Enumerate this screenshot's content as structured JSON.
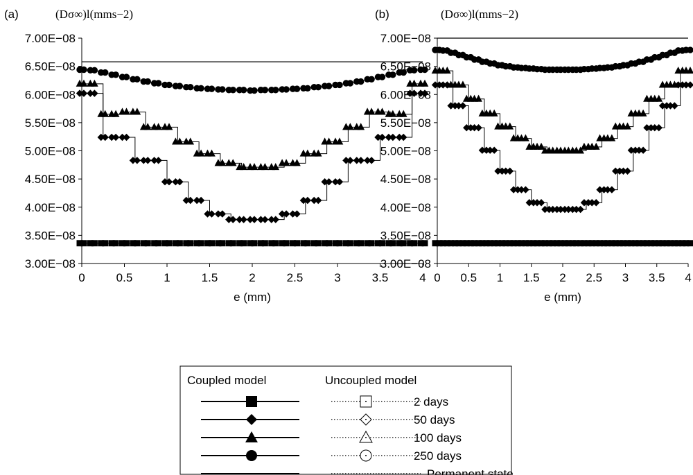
{
  "colors": {
    "ink": "#000000",
    "background": "#ffffff"
  },
  "chart_data": [
    {
      "panel_label": "(a)",
      "ylabel": "(Dσ∞)l(mms−2)",
      "xlabel": "e (mm)",
      "type": "line",
      "x": [
        0,
        0.125,
        0.25,
        0.375,
        0.5,
        0.625,
        0.75,
        0.875,
        1,
        1.125,
        1.25,
        1.375,
        1.5,
        1.625,
        1.75,
        1.875,
        2,
        2.125,
        2.25,
        2.375,
        2.5,
        2.625,
        2.75,
        2.875,
        3,
        3.125,
        3.25,
        3.375,
        3.5,
        3.625,
        3.75,
        3.875,
        4
      ],
      "xticks": [
        "0",
        "0.5",
        "1",
        "1.5",
        "2",
        "2.5",
        "3",
        "3.5",
        "4"
      ],
      "yticks": [
        "3.00E−08",
        "3.50E−08",
        "4.00E−08",
        "4.50E−08",
        "5.00E−08",
        "5.50E−08",
        "6.00E−08",
        "6.50E−08",
        "7.00E−08"
      ],
      "xlim": [
        0,
        4
      ],
      "ylim": [
        3e-08,
        7e-08
      ],
      "grid": false,
      "series": [
        {
          "name": "2 days",
          "marker": "square",
          "values": [
            3.36e-08,
            3.36e-08,
            3.36e-08,
            3.36e-08,
            3.36e-08,
            3.36e-08,
            3.36e-08,
            3.36e-08,
            3.36e-08,
            3.36e-08,
            3.36e-08,
            3.36e-08,
            3.36e-08,
            3.36e-08,
            3.36e-08,
            3.36e-08,
            3.36e-08,
            3.36e-08,
            3.36e-08,
            3.36e-08,
            3.36e-08,
            3.36e-08,
            3.36e-08,
            3.36e-08,
            3.36e-08,
            3.36e-08,
            3.36e-08,
            3.36e-08,
            3.36e-08,
            3.36e-08,
            3.36e-08,
            3.36e-08,
            3.36e-08
          ]
        },
        {
          "name": "50 days",
          "marker": "diamond",
          "values": [
            6.02e-08,
            6.02e-08,
            5.24e-08,
            5.24e-08,
            5.24e-08,
            4.83e-08,
            4.83e-08,
            4.83e-08,
            4.45e-08,
            4.45e-08,
            4.12e-08,
            4.12e-08,
            3.88e-08,
            3.88e-08,
            3.78e-08,
            3.78e-08,
            3.78e-08,
            3.78e-08,
            3.78e-08,
            3.88e-08,
            3.88e-08,
            4.12e-08,
            4.12e-08,
            4.45e-08,
            4.45e-08,
            4.83e-08,
            4.83e-08,
            4.83e-08,
            5.24e-08,
            5.24e-08,
            5.24e-08,
            6.02e-08,
            6.02e-08
          ]
        },
        {
          "name": "100 days",
          "marker": "triangle",
          "values": [
            6.19e-08,
            6.19e-08,
            5.65e-08,
            5.65e-08,
            5.69e-08,
            5.69e-08,
            5.42e-08,
            5.42e-08,
            5.42e-08,
            5.16e-08,
            5.16e-08,
            4.95e-08,
            4.95e-08,
            4.78e-08,
            4.78e-08,
            4.71e-08,
            4.71e-08,
            4.71e-08,
            4.71e-08,
            4.78e-08,
            4.78e-08,
            4.95e-08,
            4.95e-08,
            5.16e-08,
            5.16e-08,
            5.42e-08,
            5.42e-08,
            5.69e-08,
            5.69e-08,
            5.65e-08,
            5.65e-08,
            6.19e-08,
            6.19e-08
          ]
        },
        {
          "name": "250 days",
          "marker": "circle",
          "values": [
            6.44e-08,
            6.43e-08,
            6.39e-08,
            6.35e-08,
            6.31e-08,
            6.27e-08,
            6.23e-08,
            6.2e-08,
            6.17e-08,
            6.15e-08,
            6.13e-08,
            6.11e-08,
            6.1e-08,
            6.09e-08,
            6.08e-08,
            6.08e-08,
            6.07e-08,
            6.08e-08,
            6.08e-08,
            6.09e-08,
            6.1e-08,
            6.11e-08,
            6.13e-08,
            6.15e-08,
            6.17e-08,
            6.2e-08,
            6.23e-08,
            6.27e-08,
            6.31e-08,
            6.35e-08,
            6.39e-08,
            6.43e-08,
            6.44e-08
          ]
        },
        {
          "name": "Permanent state",
          "marker": "none",
          "values": [
            6.58e-08,
            6.58e-08,
            6.58e-08,
            6.58e-08,
            6.58e-08,
            6.58e-08,
            6.58e-08,
            6.58e-08,
            6.58e-08,
            6.58e-08,
            6.58e-08,
            6.58e-08,
            6.58e-08,
            6.58e-08,
            6.58e-08,
            6.58e-08,
            6.58e-08,
            6.58e-08,
            6.58e-08,
            6.58e-08,
            6.58e-08,
            6.58e-08,
            6.58e-08,
            6.58e-08,
            6.58e-08,
            6.58e-08,
            6.58e-08,
            6.58e-08,
            6.58e-08,
            6.58e-08,
            6.58e-08,
            6.58e-08,
            6.58e-08
          ]
        }
      ]
    },
    {
      "panel_label": "(b)",
      "ylabel": "(Dσ∞)l(mms−2)",
      "xlabel": "e (mm)",
      "type": "line",
      "x": [
        0,
        0.125,
        0.25,
        0.375,
        0.5,
        0.625,
        0.75,
        0.875,
        1,
        1.125,
        1.25,
        1.375,
        1.5,
        1.625,
        1.75,
        1.875,
        2,
        2.125,
        2.25,
        2.375,
        2.5,
        2.625,
        2.75,
        2.875,
        3,
        3.125,
        3.25,
        3.375,
        3.5,
        3.625,
        3.75,
        3.875,
        4
      ],
      "xticks": [
        "0",
        "0.5",
        "1",
        "1.5",
        "2",
        "2.5",
        "3",
        "3.5",
        "4"
      ],
      "yticks": [
        "3.00E−08",
        "3.50E−08",
        "4.00E−08",
        "4.50E−08",
        "5.00E−08",
        "5.50E−08",
        "6.00E−08",
        "6.50E−08",
        "7.00E−08"
      ],
      "xlim": [
        0,
        4
      ],
      "ylim": [
        3e-08,
        7e-08
      ],
      "grid": false,
      "series": [
        {
          "name": "2 days",
          "marker": "square",
          "values": [
            3.36e-08,
            3.36e-08,
            3.36e-08,
            3.36e-08,
            3.36e-08,
            3.36e-08,
            3.36e-08,
            3.36e-08,
            3.36e-08,
            3.36e-08,
            3.36e-08,
            3.36e-08,
            3.36e-08,
            3.36e-08,
            3.36e-08,
            3.36e-08,
            3.36e-08,
            3.36e-08,
            3.36e-08,
            3.36e-08,
            3.36e-08,
            3.36e-08,
            3.36e-08,
            3.36e-08,
            3.36e-08,
            3.36e-08,
            3.36e-08,
            3.36e-08,
            3.36e-08,
            3.36e-08,
            3.36e-08,
            3.36e-08,
            3.36e-08
          ]
        },
        {
          "name": "50 days",
          "marker": "diamond",
          "values": [
            6.17e-08,
            6.17e-08,
            5.8e-08,
            5.8e-08,
            5.41e-08,
            5.41e-08,
            5.01e-08,
            5.01e-08,
            4.64e-08,
            4.64e-08,
            4.31e-08,
            4.31e-08,
            4.08e-08,
            4.08e-08,
            3.96e-08,
            3.96e-08,
            3.96e-08,
            3.96e-08,
            3.96e-08,
            4.08e-08,
            4.08e-08,
            4.31e-08,
            4.31e-08,
            4.64e-08,
            4.64e-08,
            5.01e-08,
            5.01e-08,
            5.41e-08,
            5.41e-08,
            5.8e-08,
            5.8e-08,
            6.17e-08,
            6.17e-08
          ]
        },
        {
          "name": "100 days",
          "marker": "triangle",
          "values": [
            6.42e-08,
            6.42e-08,
            6.17e-08,
            6.17e-08,
            5.92e-08,
            5.92e-08,
            5.66e-08,
            5.66e-08,
            5.43e-08,
            5.43e-08,
            5.22e-08,
            5.22e-08,
            5.07e-08,
            5.07e-08,
            5e-08,
            5e-08,
            5e-08,
            5e-08,
            5e-08,
            5.07e-08,
            5.07e-08,
            5.22e-08,
            5.22e-08,
            5.43e-08,
            5.43e-08,
            5.66e-08,
            5.66e-08,
            5.92e-08,
            5.92e-08,
            6.17e-08,
            6.17e-08,
            6.42e-08,
            6.42e-08
          ]
        },
        {
          "name": "250 days",
          "marker": "circle",
          "values": [
            6.79e-08,
            6.78e-08,
            6.74e-08,
            6.7e-08,
            6.66e-08,
            6.62e-08,
            6.58e-08,
            6.55e-08,
            6.52e-08,
            6.5e-08,
            6.48e-08,
            6.47e-08,
            6.46e-08,
            6.45e-08,
            6.44e-08,
            6.44e-08,
            6.44e-08,
            6.44e-08,
            6.44e-08,
            6.45e-08,
            6.46e-08,
            6.47e-08,
            6.48e-08,
            6.5e-08,
            6.52e-08,
            6.55e-08,
            6.58e-08,
            6.62e-08,
            6.66e-08,
            6.7e-08,
            6.74e-08,
            6.78e-08,
            6.79e-08
          ]
        },
        {
          "name": "Permanent state",
          "marker": "none",
          "values": [
            7e-08,
            7e-08,
            7e-08,
            7e-08,
            7e-08,
            7e-08,
            7e-08,
            7e-08,
            7e-08,
            7e-08,
            7e-08,
            7e-08,
            7e-08,
            7e-08,
            7e-08,
            7e-08,
            7e-08,
            7e-08,
            7e-08,
            7e-08,
            7e-08,
            7e-08,
            7e-08,
            7e-08,
            7e-08,
            7e-08,
            7e-08,
            7e-08,
            7e-08,
            7e-08,
            7e-08,
            7e-08,
            7e-08
          ]
        }
      ]
    }
  ],
  "legend": {
    "coupled_header": "Coupled model",
    "uncoupled_header": "Uncoupled model",
    "items": [
      {
        "marker": "square",
        "label": "2 days"
      },
      {
        "marker": "diamond",
        "label": "50 days"
      },
      {
        "marker": "triangle",
        "label": "100 days"
      },
      {
        "marker": "circle",
        "label": "250 days"
      },
      {
        "marker": "none",
        "label": "Permanent state"
      }
    ]
  }
}
